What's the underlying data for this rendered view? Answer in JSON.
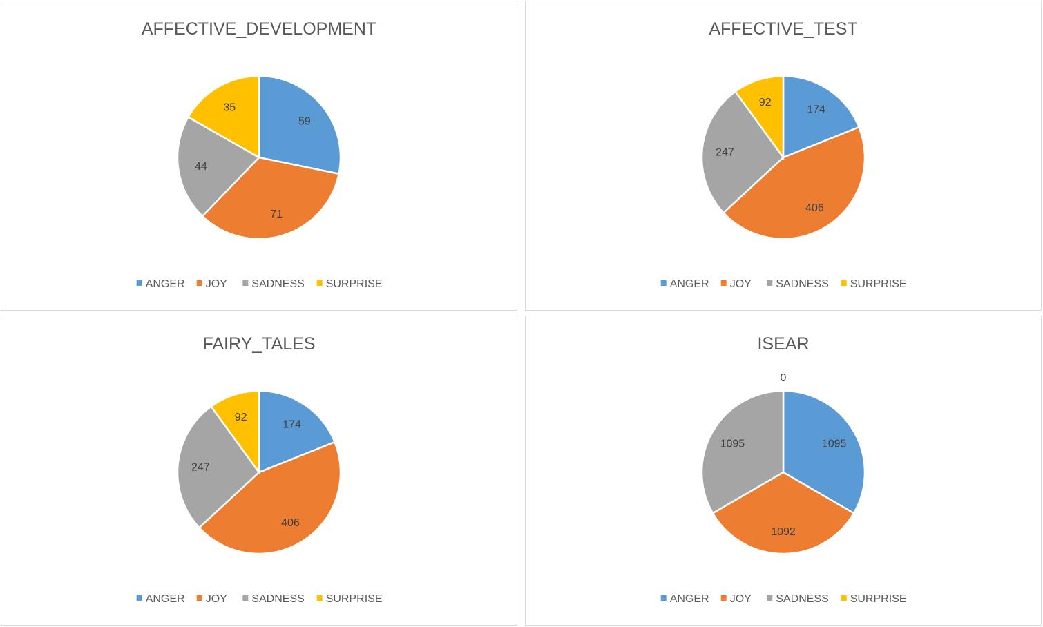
{
  "chart_data": [
    {
      "type": "pie",
      "title": "AFFECTIVE_DEVELOPMENT",
      "categories": [
        "ANGER",
        "JOY",
        "SADNESS",
        "SURPRISE"
      ],
      "values": [
        59,
        71,
        44,
        35
      ],
      "data_labels": [
        "59",
        "71",
        "44",
        "35"
      ],
      "legend_position": "bottom"
    },
    {
      "type": "pie",
      "title": "AFFECTIVE_TEST",
      "categories": [
        "ANGER",
        "JOY",
        "SADNESS",
        "SURPRISE"
      ],
      "values": [
        174,
        406,
        247,
        92
      ],
      "data_labels": [
        "174",
        "406",
        "247",
        "92"
      ],
      "legend_position": "bottom"
    },
    {
      "type": "pie",
      "title": "FAIRY_TALES",
      "categories": [
        "ANGER",
        "JOY",
        "SADNESS",
        "SURPRISE"
      ],
      "values": [
        174,
        406,
        247,
        92
      ],
      "data_labels": [
        "174",
        "406",
        "247",
        "92"
      ],
      "legend_position": "bottom"
    },
    {
      "type": "pie",
      "title": "ISEAR",
      "categories": [
        "ANGER",
        "JOY",
        "SADNESS",
        "SURPRISE"
      ],
      "values": [
        1095,
        1092,
        1095,
        0
      ],
      "data_labels": [
        "1095",
        "1092",
        "1095",
        "0"
      ],
      "legend_position": "bottom"
    }
  ],
  "colors": {
    "ANGER": "#5b9bd5",
    "JOY": "#ed7d31",
    "SADNESS": "#a5a5a5",
    "SURPRISE": "#ffc000"
  }
}
